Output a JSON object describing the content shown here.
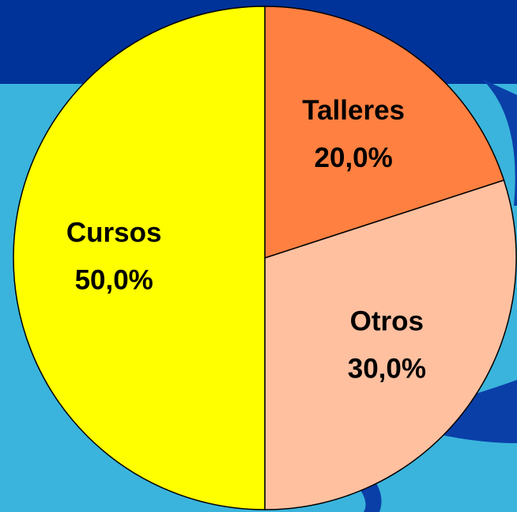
{
  "chart_data": {
    "type": "pie",
    "categories": [
      "Talleres",
      "Otros",
      "Cursos"
    ],
    "values": [
      20,
      30,
      50
    ],
    "value_labels": [
      "20,0%",
      "30,0%",
      "50,0%"
    ],
    "colors": [
      "#ff8040",
      "#ffc0a0",
      "#ffff00"
    ],
    "start_angle": 0,
    "direction": "clockwise"
  }
}
